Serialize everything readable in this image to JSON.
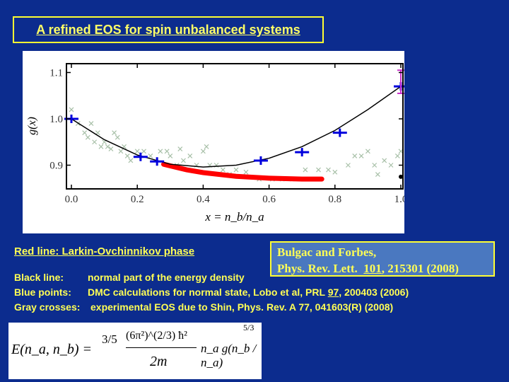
{
  "title": "A refined EOS for spin unbalanced systems",
  "legend_notes": {
    "red": "Red line: Larkin-Ovchinnikov phase",
    "black_label": "Black line:",
    "black_text": "normal part of the energy density",
    "blue_label": "Blue points:",
    "blue_text_a": "DMC calculations for normal state, Lobo et al, PRL ",
    "blue_vol": "97",
    "blue_text_b": ", 200403 (2006)",
    "gray_label": "Gray crosses:",
    "gray_text": "experimental EOS due to Shin, Phys. Rev. A 77, 041603(R) (2008)"
  },
  "reference": {
    "line1": "Bulgac and Forbes,",
    "line2a": "Phys. Rev. Lett.  ",
    "vol": "101",
    "line2b": ", 215301 (2008)"
  },
  "formula": {
    "lhs": "E(n_a, n_b) =",
    "frac1": "3/5",
    "frac2_num": "(6π²)^(2/3) ħ²",
    "frac2_den": "2m",
    "bracket": "n_a g(n_b / n_a)",
    "exponent": "5/3"
  },
  "chart_data": {
    "type": "scatter",
    "xlabel": "x = n_b/n_a",
    "ylabel": "g(x)",
    "xlim": [
      -0.02,
      1.0
    ],
    "ylim": [
      0.85,
      1.12
    ],
    "xticks": [
      "0.0",
      "0.2",
      "0.4",
      "0.6",
      "0.8",
      "1.0"
    ],
    "yticks": [
      "0.9",
      "1.0",
      "1.1"
    ],
    "grid": false,
    "colors": {
      "black": "#000000",
      "red": "#ff0000",
      "blue": "#0000dd",
      "gray": "#a8c0a8",
      "magenta": "#cc33cc"
    },
    "black_line": {
      "x": [
        0,
        0.1,
        0.2,
        0.3,
        0.4,
        0.5,
        0.6,
        0.7,
        0.8,
        0.9,
        1.0
      ],
      "y": [
        1.0,
        0.955,
        0.922,
        0.902,
        0.896,
        0.9,
        0.915,
        0.94,
        0.975,
        1.02,
        1.07
      ]
    },
    "red_line": {
      "x": [
        0.28,
        0.35,
        0.4,
        0.5,
        0.6,
        0.7,
        0.76
      ],
      "y": [
        0.902,
        0.89,
        0.884,
        0.876,
        0.872,
        0.87,
        0.87
      ]
    },
    "blue_points": {
      "x": [
        0,
        0.21,
        0.26,
        0.575,
        0.7,
        0.815,
        1.0
      ],
      "y": [
        1.0,
        0.918,
        0.908,
        0.91,
        0.928,
        0.97,
        1.07
      ]
    },
    "magenta_point": {
      "x": 1.0,
      "y": 1.08,
      "err": 0.025
    },
    "black_point": {
      "x": 1.0,
      "y": 0.875
    },
    "gray_crosses": [
      [
        0,
        1.02
      ],
      [
        0.02,
        0.99
      ],
      [
        0.04,
        0.97
      ],
      [
        0.05,
        0.96
      ],
      [
        0.06,
        0.99
      ],
      [
        0.07,
        0.95
      ],
      [
        0.08,
        0.97
      ],
      [
        0.09,
        0.94
      ],
      [
        0.1,
        0.95
      ],
      [
        0.11,
        0.94
      ],
      [
        0.12,
        0.935
      ],
      [
        0.13,
        0.97
      ],
      [
        0.14,
        0.96
      ],
      [
        0.15,
        0.93
      ],
      [
        0.16,
        0.94
      ],
      [
        0.17,
        0.92
      ],
      [
        0.18,
        0.91
      ],
      [
        0.2,
        0.93
      ],
      [
        0.22,
        0.93
      ],
      [
        0.24,
        0.92
      ],
      [
        0.27,
        0.93
      ],
      [
        0.29,
        0.93
      ],
      [
        0.3,
        0.92
      ],
      [
        0.32,
        0.9
      ],
      [
        0.33,
        0.935
      ],
      [
        0.34,
        0.91
      ],
      [
        0.36,
        0.92
      ],
      [
        0.38,
        0.9
      ],
      [
        0.4,
        0.93
      ],
      [
        0.41,
        0.94
      ],
      [
        0.42,
        0.9
      ],
      [
        0.44,
        0.9
      ],
      [
        0.46,
        0.89
      ],
      [
        0.48,
        0.88
      ],
      [
        0.5,
        0.89
      ],
      [
        0.53,
        0.885
      ],
      [
        0.57,
        0.87
      ],
      [
        0.61,
        0.87
      ],
      [
        0.64,
        0.87
      ],
      [
        0.67,
        0.87
      ],
      [
        0.71,
        0.89
      ],
      [
        0.75,
        0.89
      ],
      [
        0.78,
        0.89
      ],
      [
        0.8,
        0.885
      ],
      [
        0.84,
        0.9
      ],
      [
        0.86,
        0.92
      ],
      [
        0.88,
        0.92
      ],
      [
        0.9,
        0.93
      ],
      [
        0.92,
        0.9
      ],
      [
        0.93,
        0.88
      ],
      [
        0.95,
        0.91
      ],
      [
        0.97,
        0.9
      ],
      [
        0.99,
        0.92
      ],
      [
        1.0,
        0.93
      ]
    ]
  }
}
